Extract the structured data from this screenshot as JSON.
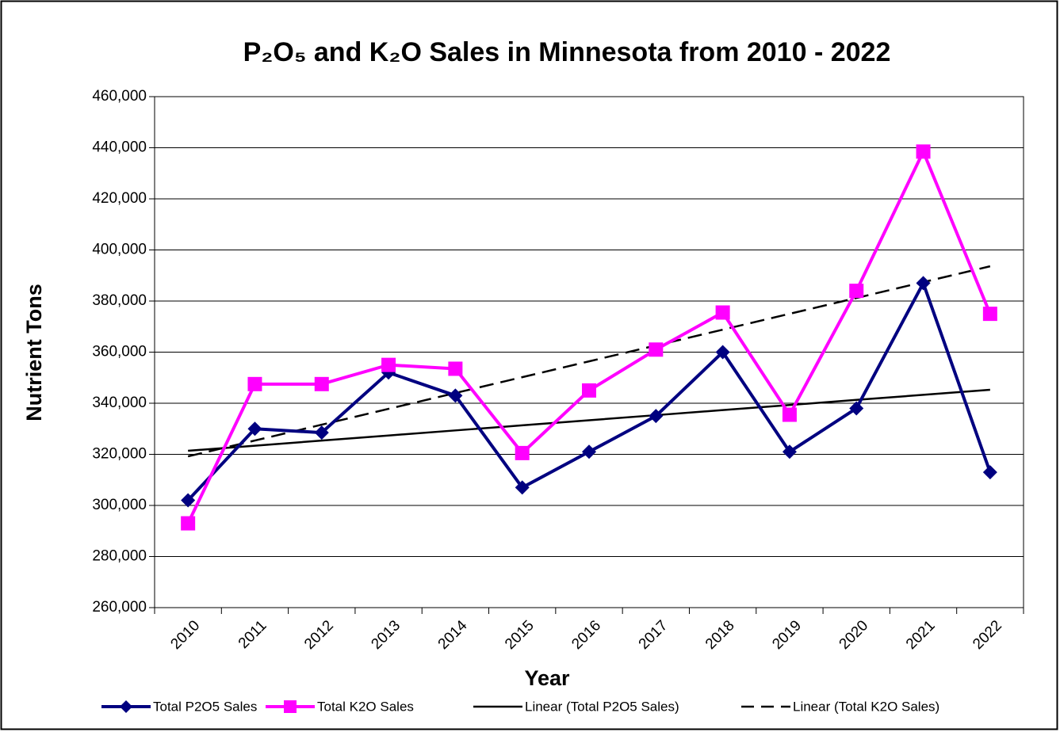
{
  "chart_data": {
    "type": "line",
    "title": "P₂O₅ and K₂O Sales in Minnesota from 2010 - 2022",
    "x_label": "Year",
    "y_label": "Nutrient Tons",
    "categories": [
      "2010",
      "2011",
      "2012",
      "2013",
      "2014",
      "2015",
      "2016",
      "2017",
      "2018",
      "2019",
      "2020",
      "2021",
      "2022"
    ],
    "series": [
      {
        "name": "Total P2O5 Sales",
        "color": "#000080",
        "marker": "diamond",
        "dash": false,
        "values": [
          302000,
          330000,
          328500,
          352000,
          343000,
          307000,
          321000,
          335000,
          360000,
          321000,
          338000,
          387000,
          313000
        ]
      },
      {
        "name": "Total K2O Sales",
        "color": "#ff00ff",
        "marker": "square",
        "dash": false,
        "values": [
          293000,
          347500,
          347500,
          355000,
          353500,
          320500,
          345000,
          361000,
          375500,
          335500,
          384000,
          438500,
          375000
        ]
      },
      {
        "name": "Linear (Total P2O5 Sales)",
        "color": "#000000",
        "marker": null,
        "dash": false,
        "values": [
          321400,
          323390,
          325380,
          327370,
          329360,
          331350,
          333340,
          335330,
          337320,
          339310,
          341300,
          343290,
          345280
        ]
      },
      {
        "name": "Linear (Total K2O Sales)",
        "color": "#000000",
        "marker": null,
        "dash": true,
        "values": [
          319200,
          325400,
          331600,
          337800,
          344000,
          350200,
          356400,
          362600,
          368800,
          375000,
          381200,
          387400,
          393600
        ]
      }
    ],
    "ylim": [
      260000,
      460000
    ],
    "yticks": [
      {
        "value": 260000,
        "label": "260,000"
      },
      {
        "value": 280000,
        "label": "280,000"
      },
      {
        "value": 300000,
        "label": "300,000"
      },
      {
        "value": 320000,
        "label": "320,000"
      },
      {
        "value": 340000,
        "label": "340,000"
      },
      {
        "value": 360000,
        "label": "360,000"
      },
      {
        "value": 380000,
        "label": "380,000"
      },
      {
        "value": 400000,
        "label": "400,000"
      },
      {
        "value": 420000,
        "label": "420,000"
      },
      {
        "value": 440000,
        "label": "440,000"
      },
      {
        "value": 460000,
        "label": "460,000"
      }
    ],
    "grid": true,
    "legend": "bottom"
  }
}
